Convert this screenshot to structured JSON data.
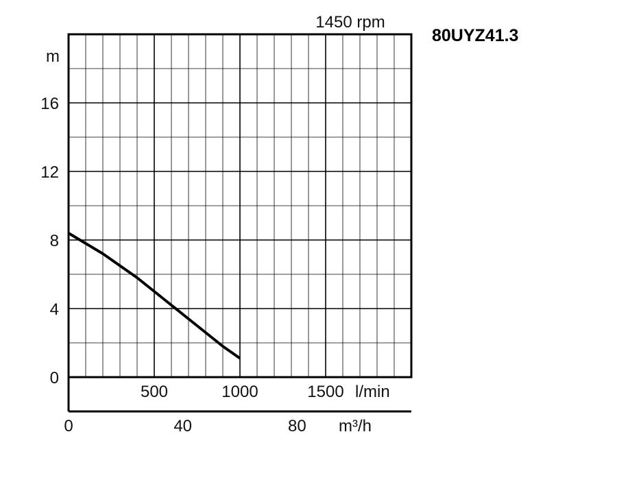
{
  "chart_data": {
    "type": "line",
    "model": "80UYZ41.3",
    "speed_label": "1450 rpm",
    "ylabel": "m",
    "ylim": [
      0,
      20
    ],
    "yticks": [
      0,
      4,
      8,
      12,
      16
    ],
    "x_lpm": {
      "range": [
        0,
        2000
      ],
      "ticks": [
        500,
        1000,
        1500
      ],
      "unit_label": "l/min"
    },
    "x_m3h": {
      "ticks": [
        0,
        40,
        80
      ],
      "unit_label": "m³/h"
    },
    "grid": true,
    "series": [
      {
        "x": [
          0,
          100,
          200,
          300,
          400,
          500,
          600,
          700,
          800,
          900,
          1000
        ],
        "y": [
          8.4,
          7.8,
          7.2,
          6.5,
          5.8,
          5.0,
          4.2,
          3.4,
          2.6,
          1.8,
          1.1
        ]
      }
    ],
    "line_color": "#000000",
    "grid_color": "#000000"
  }
}
